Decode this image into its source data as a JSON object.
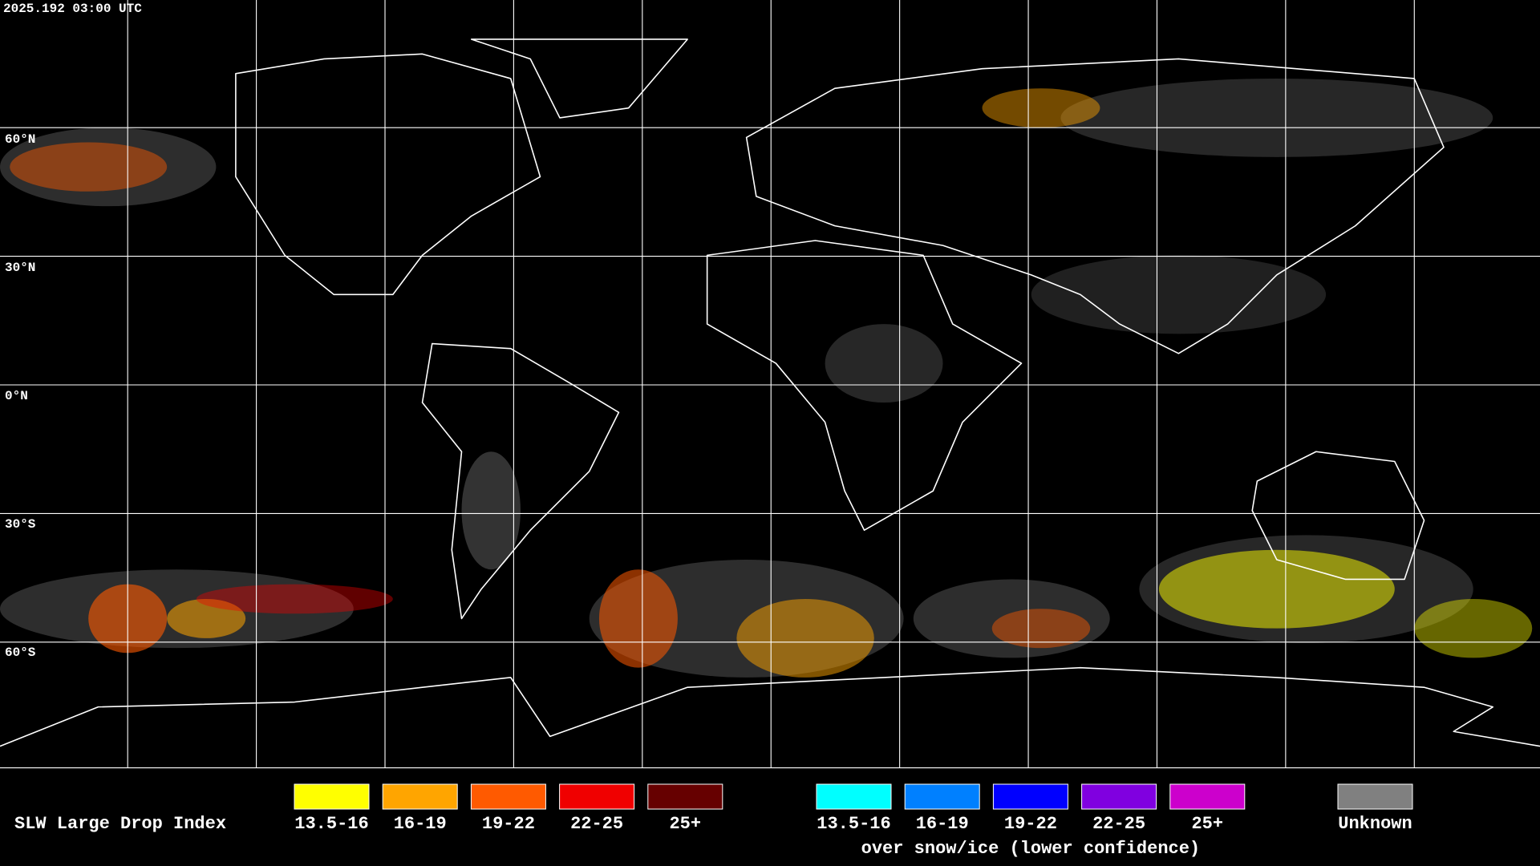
{
  "header": {
    "timestamp": "2025.192 03:00 UTC"
  },
  "grid_labels": [
    "60°N",
    "30°N",
    "0°N",
    "30°S",
    "60°S"
  ],
  "legend": {
    "title": "SLW Large Drop Index",
    "groups": [
      {
        "items": [
          {
            "label": "13.5-16",
            "color": "#ffff00"
          },
          {
            "label": "16-19",
            "color": "#ffa500"
          },
          {
            "label": "19-22",
            "color": "#ff5a00"
          },
          {
            "label": "22-25",
            "color": "#f00000"
          },
          {
            "label": "25+",
            "color": "#660000"
          }
        ]
      },
      {
        "items": [
          {
            "label": "13.5-16",
            "color": "#00ffff"
          },
          {
            "label": "16-19",
            "color": "#0080ff"
          },
          {
            "label": "19-22",
            "color": "#0000ff"
          },
          {
            "label": "22-25",
            "color": "#8000e0"
          },
          {
            "label": "25+",
            "color": "#cc00cc"
          }
        ],
        "caption": "over snow/ice (lower confidence)"
      }
    ],
    "unknown": {
      "label": "Unknown",
      "color": "#808080"
    }
  }
}
